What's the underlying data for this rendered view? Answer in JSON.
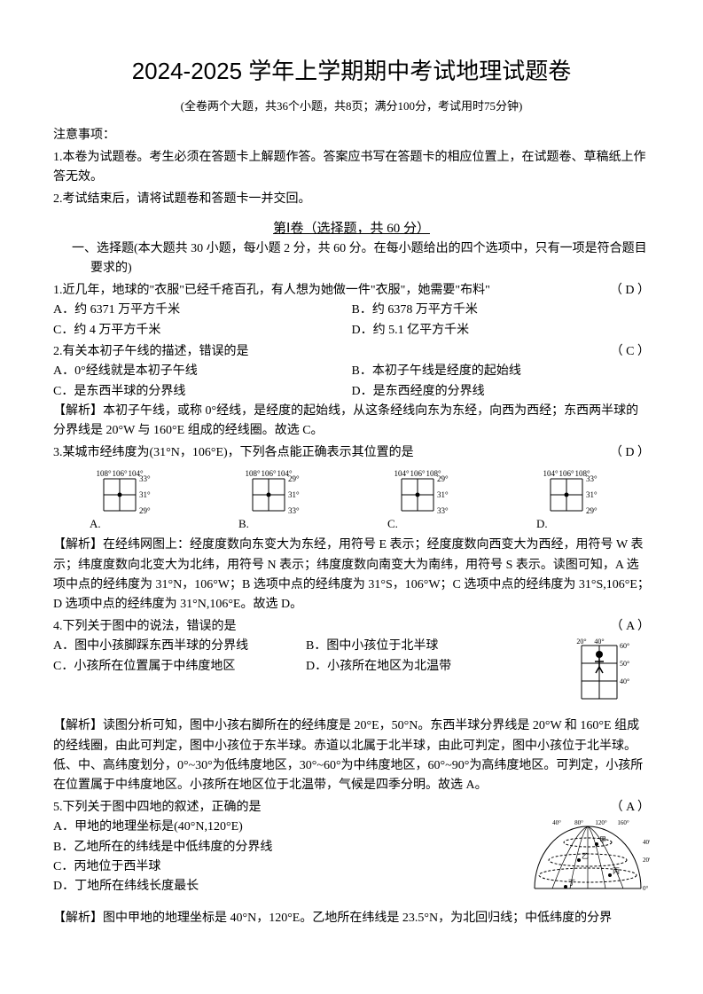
{
  "title": "2024-2025 学年上学期期中考试地理试题卷",
  "subtitle": "(全卷两个大题，共36个小题，共8页；满分100分，考试用时75分钟)",
  "notice": {
    "head": "注意事项：",
    "n1": "1.本卷为试题卷。考生必须在答题卡上解题作答。答案应书写在答题卡的相应位置上，在试题卷、草稿纸上作答无效。",
    "n2": "2.考试结束后，请将试题卷和答题卡一并交回。"
  },
  "section1": "第Ⅰ卷（选择题，共 60 分）",
  "part1_intro": "一、选择题(本大题共 30 小题，每小题 2 分，共 60 分。在每小题给出的四个选项中，只有一项是符合题目要求的)",
  "q1": {
    "text": "1.近几年，地球的\"衣服\"已经千疮百孔，有人想为她做一件\"衣服\"，她需要\"布料\"",
    "ans": "（ D ）",
    "a": "A．约 6371 万平方千米",
    "b": "B．约 6378 万平方千米",
    "c": "C．约 4 万平方千米",
    "d": "D．约 5.1 亿平方千米"
  },
  "q2": {
    "text": "2.有关本初子午线的描述，错误的是",
    "ans": "（ C ）",
    "a": "A．0°经线就是本初子午线",
    "b": "B．本初子午线是经度的起始线",
    "c": "C．是东西半球的分界线",
    "d": "D．是东西经度的分界线",
    "explain": "【解析】本初子午线，或称 0°经线，是经度的起始线，从这条经线向东为东经，向西为西经；东西两半球的分界线是 20°W 与 160°E 组成的经线圈。故选 C。"
  },
  "q3": {
    "text": "3.某城市经纬度为(31°N，106°E)，下列各点能正确表示其位置的是",
    "ans": "（ D ）",
    "grids": [
      {
        "label": "A.",
        "top1": "108°",
        "top2": "106°",
        "top3": "104°",
        "r1": "33°",
        "r2": "31°",
        "r3": "29°"
      },
      {
        "label": "B.",
        "top1": "108°",
        "top2": "106°",
        "top3": "104°",
        "r1": "29°",
        "r2": "31°",
        "r3": "33°"
      },
      {
        "label": "C.",
        "top1": "104°",
        "top2": "106°",
        "top3": "108°",
        "r1": "29°",
        "r2": "31°",
        "r3": "33°"
      },
      {
        "label": "D.",
        "top1": "104°",
        "top2": "106°",
        "top3": "108°",
        "r1": "33°",
        "r2": "31°",
        "r3": "29°"
      }
    ],
    "explain": "【解析】在经纬网图上：经度度数向东变大为东经，用符号 E 表示；经度度数向西变大为西经，用符号 W 表示；纬度度数向北变大为北纬，用符号 N 表示；纬度度数向南变大为南纬，用符号 S 表示。读图可知，A 选项中点的经纬度为 31°N，106°W；B 选项中点的经纬度为 31°S，106°W；C 选项中点的经纬度为 31°S,106°E；D 选项中点的经纬度为 31°N,106°E。故选 D。"
  },
  "q4": {
    "text": "4.下列关于图中的说法，错误的是",
    "ans": "（ A ）",
    "a": "A．图中小孩脚踩东西半球的分界线",
    "b": "B．图中小孩位于北半球",
    "c": "C．小孩所在位置属于中纬度地区",
    "d": "D．小孩所在地区为北温带",
    "explain": "【解析】读图分析可知，图中小孩右脚所在的经纬度是 20°E，50°N。东西半球分界线是 20°W 和 160°E 组成的经线圈，由此可判定，图中小孩位于东半球。赤道以北属于北半球，由此可判定，图中小孩位于北半球。低、中、高纬度划分，0°~30°为低纬度地区，30°~60°为中纬度地区，60°~90°为高纬度地区。可判定，小孩所在位置属于中纬度地区。小孩所在地区位于北温带，气候是四季分明。故选 A。",
    "fig": {
      "lon1": "20°",
      "lon2": "40°",
      "lat1": "60°",
      "lat2": "50°",
      "lat3": "40°"
    }
  },
  "q5": {
    "text": "5.下列关于图中四地的叙述，正确的是",
    "ans": "（ A ）",
    "a": "A．甲地的地理坐标是(40°N,120°E)",
    "b": "B．乙地所在的纬线是中低纬度的分界线",
    "c": "C．丙地位于西半球",
    "d": "D．丁地所在纬线长度最长",
    "explain": "【解析】图中甲地的地理坐标是 40°N，120°E。乙地所在纬线是 23.5°N，为北回归线；中低纬度的分界",
    "fig": {
      "lons": [
        "40°",
        "80°",
        "120°",
        "160°"
      ],
      "lats": [
        "40°",
        "20°",
        "0°"
      ],
      "labels": [
        "甲",
        "乙",
        "丙",
        "丁"
      ]
    }
  }
}
